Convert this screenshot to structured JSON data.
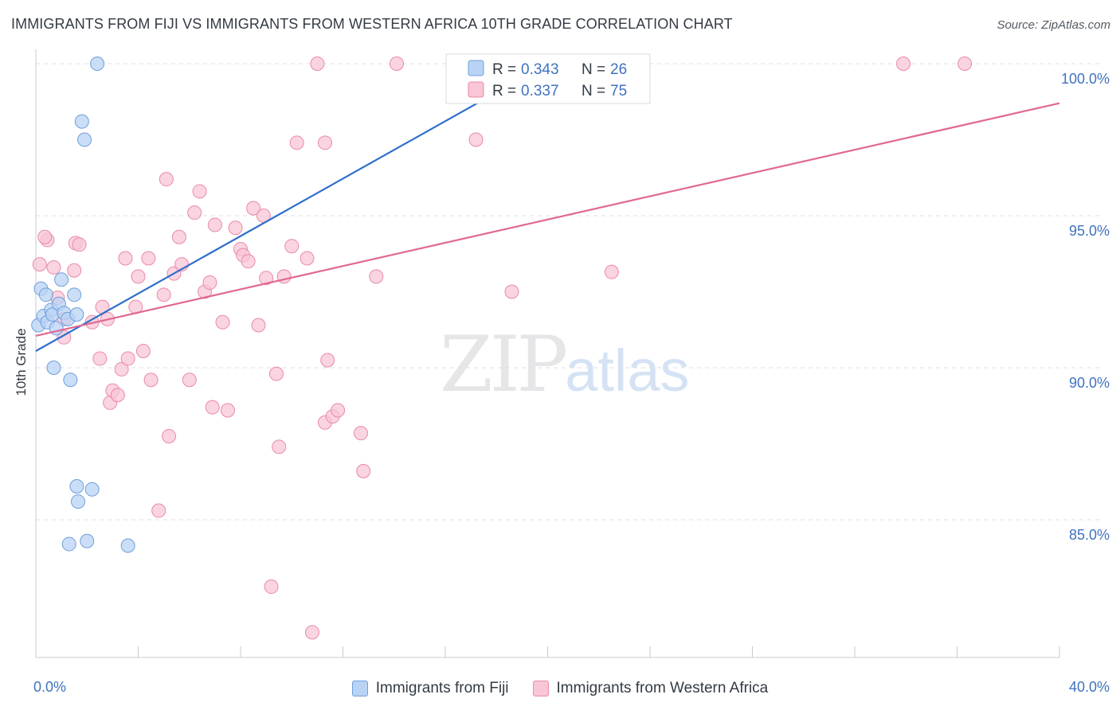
{
  "header": {
    "title": "IMMIGRANTS FROM FIJI VS IMMIGRANTS FROM WESTERN AFRICA 10TH GRADE CORRELATION CHART",
    "source": "Source: ZipAtlas.com"
  },
  "watermark": {
    "zip": "ZIP",
    "atlas": "atlas"
  },
  "colors": {
    "fiji_fill": "#b9d3f4",
    "fiji_stroke": "#6f9fdc",
    "fiji_line": "#2e6fcc",
    "wafrica_fill": "#f8c6d6",
    "wafrica_stroke": "#e98aaa",
    "wafrica_line": "#e06892",
    "grid": "#dcdfe4",
    "axis_label": "#3f72c1"
  },
  "chart_data": {
    "type": "scatter",
    "title": "IMMIGRANTS FROM FIJI VS IMMIGRANTS FROM WESTERN AFRICA 10TH GRADE CORRELATION CHART",
    "xlabel": "",
    "ylabel": "10th Grade",
    "xlim": [
      0,
      40
    ],
    "ylim": [
      80.5,
      100.6
    ],
    "x_tick_labels": [
      "0.0%",
      "40.0%"
    ],
    "y_ticks": [
      85,
      90,
      95,
      100
    ],
    "y_tick_labels": [
      "85.0%",
      "90.0%",
      "95.0%",
      "100.0%"
    ],
    "grid": true,
    "legend_position": "top-center",
    "legend": [
      {
        "r_label": "R =",
        "r_value": "0.343",
        "n_label": "N =",
        "n_value": "26"
      },
      {
        "r_label": "R =",
        "r_value": "0.337",
        "n_label": "N =",
        "n_value": "75"
      }
    ],
    "series": [
      {
        "name": "Immigrants from Fiji",
        "trend": {
          "x": [
            0.0,
            20.0
          ],
          "y": [
            90.55,
            100.0
          ]
        },
        "points": [
          {
            "x": 0.1,
            "y": 91.4
          },
          {
            "x": 0.2,
            "y": 92.6
          },
          {
            "x": 0.3,
            "y": 91.7
          },
          {
            "x": 0.4,
            "y": 92.4
          },
          {
            "x": 0.45,
            "y": 91.5
          },
          {
            "x": 0.6,
            "y": 91.9
          },
          {
            "x": 0.65,
            "y": 91.75
          },
          {
            "x": 0.7,
            "y": 90.0
          },
          {
            "x": 0.8,
            "y": 91.3
          },
          {
            "x": 0.9,
            "y": 92.1
          },
          {
            "x": 1.0,
            "y": 92.9
          },
          {
            "x": 1.1,
            "y": 91.8
          },
          {
            "x": 1.25,
            "y": 91.6
          },
          {
            "x": 1.35,
            "y": 89.6
          },
          {
            "x": 1.5,
            "y": 92.4
          },
          {
            "x": 1.6,
            "y": 91.75
          },
          {
            "x": 1.6,
            "y": 86.1
          },
          {
            "x": 1.65,
            "y": 85.6
          },
          {
            "x": 1.8,
            "y": 98.1
          },
          {
            "x": 1.9,
            "y": 97.5
          },
          {
            "x": 2.2,
            "y": 86.0
          },
          {
            "x": 2.4,
            "y": 100.0
          },
          {
            "x": 1.3,
            "y": 84.2
          },
          {
            "x": 2.0,
            "y": 84.3
          },
          {
            "x": 3.6,
            "y": 84.15
          },
          {
            "x": 18.0,
            "y": 100.0
          }
        ]
      },
      {
        "name": "Immigrants from Western Africa",
        "trend": {
          "x": [
            0.0,
            40.0
          ],
          "y": [
            91.05,
            98.7
          ]
        },
        "points": [
          {
            "x": 0.15,
            "y": 93.4
          },
          {
            "x": 0.45,
            "y": 94.2
          },
          {
            "x": 0.7,
            "y": 93.3
          },
          {
            "x": 0.85,
            "y": 92.3
          },
          {
            "x": 1.1,
            "y": 91.0
          },
          {
            "x": 1.1,
            "y": 91.6
          },
          {
            "x": 1.5,
            "y": 93.2
          },
          {
            "x": 1.55,
            "y": 94.1
          },
          {
            "x": 1.7,
            "y": 94.05
          },
          {
            "x": 2.2,
            "y": 91.5
          },
          {
            "x": 2.5,
            "y": 90.3
          },
          {
            "x": 2.6,
            "y": 92.0
          },
          {
            "x": 2.8,
            "y": 91.6
          },
          {
            "x": 2.9,
            "y": 88.85
          },
          {
            "x": 3.0,
            "y": 89.25
          },
          {
            "x": 3.2,
            "y": 89.1
          },
          {
            "x": 3.35,
            "y": 89.95
          },
          {
            "x": 3.5,
            "y": 93.6
          },
          {
            "x": 3.6,
            "y": 90.3
          },
          {
            "x": 3.9,
            "y": 92.0
          },
          {
            "x": 4.0,
            "y": 93.0
          },
          {
            "x": 4.2,
            "y": 90.55
          },
          {
            "x": 4.4,
            "y": 93.6
          },
          {
            "x": 4.5,
            "y": 89.6
          },
          {
            "x": 4.8,
            "y": 85.3
          },
          {
            "x": 5.0,
            "y": 92.4
          },
          {
            "x": 5.1,
            "y": 96.2
          },
          {
            "x": 5.2,
            "y": 87.75
          },
          {
            "x": 5.4,
            "y": 93.1
          },
          {
            "x": 5.6,
            "y": 94.3
          },
          {
            "x": 5.7,
            "y": 93.4
          },
          {
            "x": 6.0,
            "y": 89.6
          },
          {
            "x": 6.2,
            "y": 95.1
          },
          {
            "x": 6.4,
            "y": 95.8
          },
          {
            "x": 6.6,
            "y": 92.5
          },
          {
            "x": 6.8,
            "y": 92.8
          },
          {
            "x": 6.9,
            "y": 88.7
          },
          {
            "x": 7.0,
            "y": 94.7
          },
          {
            "x": 7.3,
            "y": 91.5
          },
          {
            "x": 7.5,
            "y": 88.6
          },
          {
            "x": 7.8,
            "y": 94.6
          },
          {
            "x": 8.0,
            "y": 93.9
          },
          {
            "x": 8.1,
            "y": 93.7
          },
          {
            "x": 8.3,
            "y": 93.5
          },
          {
            "x": 8.5,
            "y": 95.25
          },
          {
            "x": 8.7,
            "y": 91.4
          },
          {
            "x": 8.9,
            "y": 95.0
          },
          {
            "x": 9.0,
            "y": 92.95
          },
          {
            "x": 9.2,
            "y": 82.8
          },
          {
            "x": 9.4,
            "y": 89.8
          },
          {
            "x": 9.5,
            "y": 87.4
          },
          {
            "x": 9.7,
            "y": 93.0
          },
          {
            "x": 10.0,
            "y": 94.0
          },
          {
            "x": 10.2,
            "y": 97.4
          },
          {
            "x": 10.6,
            "y": 93.6
          },
          {
            "x": 10.8,
            "y": 81.3
          },
          {
            "x": 11.0,
            "y": 100.0
          },
          {
            "x": 11.3,
            "y": 97.4
          },
          {
            "x": 11.3,
            "y": 88.2
          },
          {
            "x": 11.4,
            "y": 90.25
          },
          {
            "x": 11.6,
            "y": 88.4
          },
          {
            "x": 11.8,
            "y": 88.6
          },
          {
            "x": 12.7,
            "y": 87.85
          },
          {
            "x": 12.8,
            "y": 86.6
          },
          {
            "x": 13.3,
            "y": 93.0
          },
          {
            "x": 14.1,
            "y": 100.0
          },
          {
            "x": 17.2,
            "y": 97.5
          },
          {
            "x": 17.7,
            "y": 100.0
          },
          {
            "x": 18.7,
            "y": 100.0
          },
          {
            "x": 18.6,
            "y": 92.5
          },
          {
            "x": 22.5,
            "y": 93.15
          },
          {
            "x": 22.5,
            "y": 100.0
          },
          {
            "x": 33.9,
            "y": 100.0
          },
          {
            "x": 36.3,
            "y": 100.0
          },
          {
            "x": 0.35,
            "y": 94.3
          }
        ]
      }
    ]
  }
}
